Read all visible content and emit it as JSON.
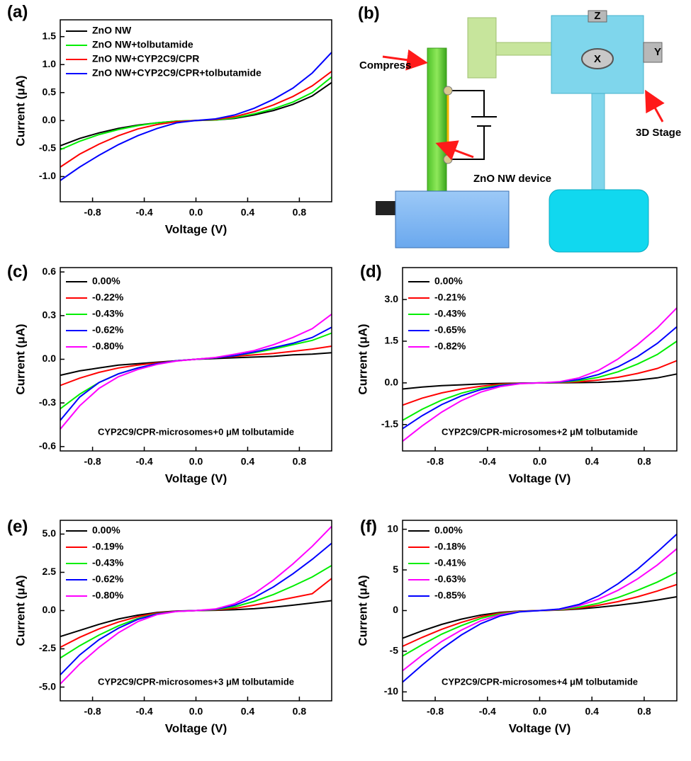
{
  "chart_data": [
    {
      "type": "line",
      "panel_label": "(a)",
      "xlabel": "Voltage (V)",
      "ylabel": "Current (μA)",
      "legend": "upper left",
      "x": [
        -1.05,
        -0.9,
        -0.75,
        -0.6,
        -0.45,
        -0.3,
        -0.15,
        0,
        0.15,
        0.3,
        0.45,
        0.6,
        0.75,
        0.9,
        1.05
      ],
      "xlim": [
        -1.05,
        1.05
      ],
      "xticks": [
        -0.8,
        -0.4,
        {
          "value": 0,
          "label": "0.0"
        },
        0.4,
        0.8
      ],
      "ylim": [
        -1.45,
        1.8
      ],
      "yticks": [
        {
          "value": -1,
          "label": "-1.0"
        },
        -0.5,
        {
          "value": 0,
          "label": "0.0"
        },
        0.5,
        {
          "value": 1,
          "label": "1.0"
        },
        1.5
      ],
      "series": [
        {
          "name": "ZnO NW",
          "color": "#000000",
          "values": [
            -0.45,
            -0.32,
            -0.22,
            -0.14,
            -0.08,
            -0.04,
            -0.01,
            0,
            0.01,
            0.04,
            0.1,
            0.18,
            0.29,
            0.44,
            0.68
          ]
        },
        {
          "name": "ZnO NW+tolbutamide",
          "color": "#00ee00",
          "values": [
            -0.52,
            -0.37,
            -0.25,
            -0.16,
            -0.09,
            -0.04,
            -0.01,
            0,
            0.01,
            0.05,
            0.12,
            0.21,
            0.33,
            0.5,
            0.78
          ]
        },
        {
          "name": "ZnO NW+CYP2C9/CPR",
          "color": "#ff0000",
          "values": [
            -0.83,
            -0.6,
            -0.42,
            -0.27,
            -0.15,
            -0.07,
            -0.02,
            0,
            0.02,
            0.07,
            0.16,
            0.28,
            0.43,
            0.62,
            0.88
          ]
        },
        {
          "name": "ZnO NW+CYP2C9/CPR+tolbutamide",
          "color": "#0000ff",
          "values": [
            -1.07,
            -0.83,
            -0.62,
            -0.43,
            -0.27,
            -0.14,
            -0.04,
            0,
            0.03,
            0.1,
            0.22,
            0.38,
            0.58,
            0.85,
            1.22
          ]
        }
      ]
    },
    {
      "type": "line",
      "panel_label": "(c)",
      "xlabel": "Voltage (V)",
      "ylabel": "Current (μA)",
      "legend": "upper left",
      "annotation": "CYP2C9/CPR-microsomes+0 μM tolbutamide",
      "x": [
        -1.05,
        -0.9,
        -0.75,
        -0.6,
        -0.45,
        -0.3,
        -0.15,
        0,
        0.15,
        0.3,
        0.45,
        0.6,
        0.75,
        0.9,
        1.05
      ],
      "xlim": [
        -1.05,
        1.05
      ],
      "xticks": [
        -0.8,
        -0.4,
        {
          "value": 0,
          "label": "0.0"
        },
        0.4,
        0.8
      ],
      "ylim": [
        -0.63,
        0.63
      ],
      "yticks": [
        -0.6,
        -0.3,
        {
          "value": 0,
          "label": "0.0"
        },
        0.3,
        0.6
      ],
      "series": [
        {
          "name": "0.00%",
          "color": "#000000",
          "values": [
            -0.11,
            -0.08,
            -0.06,
            -0.04,
            -0.03,
            -0.02,
            -0.01,
            0,
            0.005,
            0.01,
            0.015,
            0.02,
            0.03,
            0.035,
            0.045
          ]
        },
        {
          "name": "-0.22%",
          "color": "#ff0000",
          "values": [
            -0.18,
            -0.13,
            -0.09,
            -0.06,
            -0.04,
            -0.025,
            -0.01,
            0,
            0.01,
            0.02,
            0.03,
            0.04,
            0.055,
            0.07,
            0.09
          ]
        },
        {
          "name": "-0.43%",
          "color": "#00ee00",
          "values": [
            -0.34,
            -0.24,
            -0.16,
            -0.1,
            -0.06,
            -0.03,
            -0.01,
            0,
            0.01,
            0.025,
            0.045,
            0.07,
            0.1,
            0.13,
            0.18
          ]
        },
        {
          "name": "-0.62%",
          "color": "#0000ff",
          "values": [
            -0.42,
            -0.26,
            -0.16,
            -0.1,
            -0.06,
            -0.03,
            -0.01,
            0,
            0.01,
            0.025,
            0.05,
            0.08,
            0.11,
            0.15,
            0.22
          ]
        },
        {
          "name": "-0.80%",
          "color": "#ff00ff",
          "values": [
            -0.48,
            -0.32,
            -0.2,
            -0.12,
            -0.07,
            -0.035,
            -0.012,
            0,
            0.012,
            0.035,
            0.06,
            0.1,
            0.15,
            0.21,
            0.31
          ]
        }
      ]
    },
    {
      "type": "line",
      "panel_label": "(d)",
      "xlabel": "Voltage (V)",
      "ylabel": "Current (μA)",
      "legend": "upper left",
      "annotation": "CYP2C9/CPR-microsomes+2 μM tolbutamide",
      "x": [
        -1.05,
        -0.9,
        -0.75,
        -0.6,
        -0.45,
        -0.3,
        -0.15,
        0,
        0.15,
        0.3,
        0.45,
        0.6,
        0.75,
        0.9,
        1.05
      ],
      "xlim": [
        -1.05,
        1.05
      ],
      "xticks": [
        -0.8,
        -0.4,
        {
          "value": 0,
          "label": "0.0"
        },
        0.4,
        0.8
      ],
      "ylim": [
        -2.45,
        4.15
      ],
      "yticks": [
        -1.5,
        {
          "value": 0,
          "label": "0.0"
        },
        1.5,
        {
          "value": 3,
          "label": "3.0"
        }
      ],
      "series": [
        {
          "name": "0.00%",
          "color": "#000000",
          "values": [
            -0.22,
            -0.15,
            -0.1,
            -0.07,
            -0.04,
            -0.02,
            -0.01,
            0,
            0.005,
            0.01,
            0.02,
            0.05,
            0.1,
            0.18,
            0.32
          ]
        },
        {
          "name": "-0.21%",
          "color": "#ff0000",
          "values": [
            -0.8,
            -0.55,
            -0.36,
            -0.22,
            -0.12,
            -0.05,
            -0.01,
            0,
            0.01,
            0.04,
            0.1,
            0.2,
            0.34,
            0.52,
            0.8
          ]
        },
        {
          "name": "-0.43%",
          "color": "#00ee00",
          "values": [
            -1.35,
            -0.95,
            -0.62,
            -0.37,
            -0.19,
            -0.08,
            -0.02,
            0,
            0.02,
            0.08,
            0.2,
            0.4,
            0.68,
            1.02,
            1.5
          ]
        },
        {
          "name": "-0.65%",
          "color": "#0000ff",
          "values": [
            -1.65,
            -1.18,
            -0.78,
            -0.47,
            -0.24,
            -0.1,
            -0.02,
            0,
            0.03,
            0.12,
            0.3,
            0.58,
            0.95,
            1.42,
            2.02
          ]
        },
        {
          "name": "-0.82%",
          "color": "#ff00ff",
          "values": [
            -2.1,
            -1.55,
            -1.05,
            -0.64,
            -0.33,
            -0.13,
            -0.03,
            0,
            0.04,
            0.18,
            0.45,
            0.86,
            1.38,
            1.98,
            2.7
          ]
        }
      ]
    },
    {
      "type": "line",
      "panel_label": "(e)",
      "xlabel": "Voltage (V)",
      "ylabel": "Current (μA)",
      "legend": "upper left",
      "annotation": "CYP2C9/CPR-microsomes+3 μM tolbutamide",
      "x": [
        -1.05,
        -0.9,
        -0.75,
        -0.6,
        -0.45,
        -0.3,
        -0.15,
        0,
        0.15,
        0.3,
        0.45,
        0.6,
        0.75,
        0.9,
        1.05
      ],
      "xlim": [
        -1.05,
        1.05
      ],
      "xticks": [
        -0.8,
        -0.4,
        {
          "value": 0,
          "label": "0.0"
        },
        0.4,
        0.8
      ],
      "ylim": [
        -5.9,
        5.9
      ],
      "yticks": [
        {
          "value": -5,
          "label": "-5.0"
        },
        -2.5,
        {
          "value": 0,
          "label": "0.0"
        },
        2.5,
        {
          "value": 5,
          "label": "5.0"
        }
      ],
      "series": [
        {
          "name": "0.00%",
          "color": "#000000",
          "values": [
            -1.7,
            -1.3,
            -0.9,
            -0.55,
            -0.3,
            -0.12,
            -0.03,
            0,
            0.02,
            0.06,
            0.12,
            0.22,
            0.35,
            0.5,
            0.65
          ]
        },
        {
          "name": "-0.19%",
          "color": "#ff0000",
          "values": [
            -2.4,
            -1.75,
            -1.2,
            -0.75,
            -0.4,
            -0.16,
            -0.04,
            0,
            0.04,
            0.15,
            0.35,
            0.6,
            0.85,
            1.1,
            2.1
          ]
        },
        {
          "name": "-0.43%",
          "color": "#00ee00",
          "values": [
            -3.1,
            -2.3,
            -1.6,
            -1.0,
            -0.52,
            -0.2,
            -0.05,
            0,
            0.06,
            0.25,
            0.6,
            1.05,
            1.6,
            2.2,
            2.95
          ]
        },
        {
          "name": "-0.62%",
          "color": "#0000ff",
          "values": [
            -4.2,
            -2.9,
            -1.9,
            -1.15,
            -0.58,
            -0.22,
            -0.05,
            0,
            0.08,
            0.35,
            0.85,
            1.55,
            2.4,
            3.35,
            4.4
          ]
        },
        {
          "name": "-0.80%",
          "color": "#ff00ff",
          "values": [
            -4.8,
            -3.5,
            -2.4,
            -1.45,
            -0.72,
            -0.26,
            -0.06,
            0,
            0.1,
            0.45,
            1.1,
            2.0,
            3.05,
            4.2,
            5.5
          ]
        }
      ]
    },
    {
      "type": "line",
      "panel_label": "(f)",
      "xlabel": "Voltage (V)",
      "ylabel": "Current (μA)",
      "legend": "upper left",
      "annotation": "CYP2C9/CPR-microsomes+4 μM tolbutamide",
      "x": [
        -1.05,
        -0.9,
        -0.75,
        -0.6,
        -0.45,
        -0.3,
        -0.15,
        0,
        0.15,
        0.3,
        0.45,
        0.6,
        0.75,
        0.9,
        1.05
      ],
      "xlim": [
        -1.05,
        1.05
      ],
      "xticks": [
        -0.8,
        -0.4,
        {
          "value": 0,
          "label": "0.0"
        },
        0.4,
        0.8
      ],
      "ylim": [
        -11.1,
        11.1
      ],
      "yticks": [
        -10,
        -5,
        0,
        5,
        10
      ],
      "series": [
        {
          "name": "0.00%",
          "color": "#000000",
          "values": [
            -3.4,
            -2.5,
            -1.7,
            -1.05,
            -0.55,
            -0.22,
            -0.05,
            0,
            0.05,
            0.2,
            0.4,
            0.65,
            0.95,
            1.3,
            1.7
          ]
        },
        {
          "name": "-0.18%",
          "color": "#ff0000",
          "values": [
            -4.4,
            -3.3,
            -2.3,
            -1.45,
            -0.75,
            -0.3,
            -0.07,
            0,
            0.08,
            0.3,
            0.65,
            1.1,
            1.7,
            2.4,
            3.2
          ]
        },
        {
          "name": "-0.41%",
          "color": "#00ee00",
          "values": [
            -5.6,
            -4.2,
            -2.9,
            -1.85,
            -0.95,
            -0.38,
            -0.09,
            0,
            0.1,
            0.4,
            0.9,
            1.6,
            2.5,
            3.5,
            4.7
          ]
        },
        {
          "name": "-0.63%",
          "color": "#ff00ff",
          "values": [
            -7.4,
            -5.5,
            -3.8,
            -2.4,
            -1.25,
            -0.5,
            -0.12,
            0,
            0.14,
            0.6,
            1.4,
            2.5,
            3.9,
            5.6,
            7.6
          ]
        },
        {
          "name": "-0.85%",
          "color": "#0000ff",
          "values": [
            -8.8,
            -6.7,
            -4.7,
            -3.0,
            -1.6,
            -0.65,
            -0.15,
            0,
            0.18,
            0.75,
            1.8,
            3.3,
            5.1,
            7.2,
            9.4
          ]
        }
      ]
    }
  ],
  "diagram": {
    "panel_label": "(b)",
    "compress": "Compress",
    "device": "ZnO NW device",
    "stage": "3D Stage",
    "z": "Z",
    "x": "X",
    "y": "Y"
  }
}
